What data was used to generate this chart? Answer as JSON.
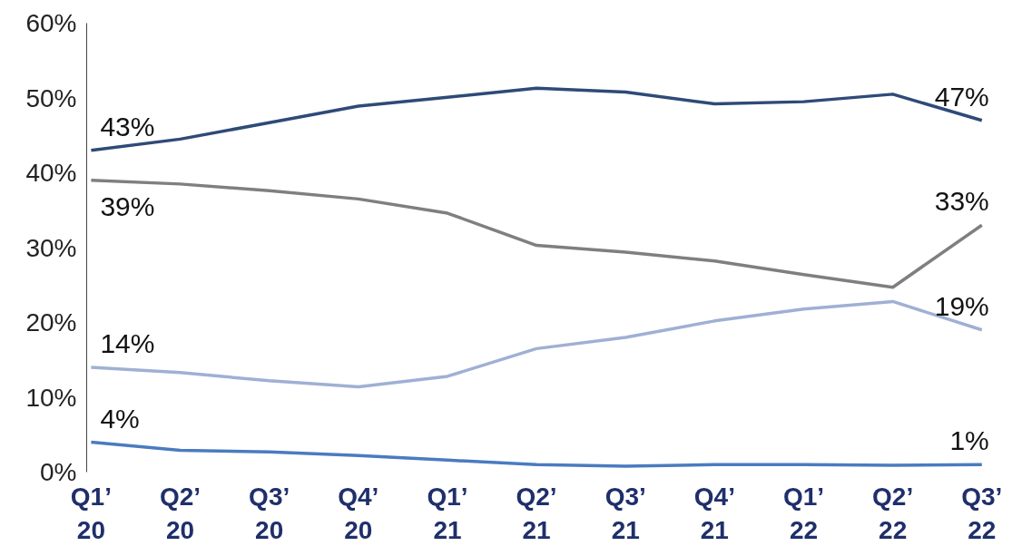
{
  "chart_data": {
    "type": "line",
    "categories": [
      "Q1’\n20",
      "Q2’\n20",
      "Q3’\n20",
      "Q4’\n20",
      "Q1’\n21",
      "Q2’\n21",
      "Q3’\n21",
      "Q4’\n21",
      "Q1’\n22",
      "Q2’\n22",
      "Q3’\n22"
    ],
    "series": [
      {
        "color": "#2f4a78",
        "values": [
          43,
          44.5,
          46.7,
          48.9,
          50.1,
          51.3,
          50.8,
          49.2,
          49.5,
          50.5,
          47
        ],
        "value_labels": [
          "43%",
          null,
          null,
          null,
          null,
          null,
          null,
          null,
          null,
          null,
          "47%"
        ]
      },
      {
        "color": "#7f7f7f",
        "values": [
          39,
          38.5,
          37.6,
          36.5,
          34.6,
          30.3,
          29.4,
          28.2,
          26.4,
          24.7,
          33
        ],
        "value_labels": [
          "39%",
          null,
          null,
          null,
          null,
          null,
          null,
          null,
          null,
          null,
          "33%"
        ]
      },
      {
        "color": "#9fb0d4",
        "values": [
          14,
          13.3,
          12.2,
          11.4,
          12.8,
          16.5,
          18,
          20.2,
          21.8,
          22.8,
          19
        ],
        "value_labels": [
          "14%",
          null,
          null,
          null,
          null,
          null,
          null,
          null,
          null,
          null,
          "19%"
        ]
      },
      {
        "color": "#4a7bc0",
        "values": [
          4,
          2.9,
          2.7,
          2.2,
          1.6,
          1.0,
          0.8,
          1.0,
          1.0,
          0.9,
          1
        ],
        "value_labels": [
          "4%",
          null,
          null,
          null,
          null,
          null,
          null,
          null,
          null,
          null,
          "1%"
        ]
      }
    ],
    "ylim": [
      0,
      60
    ],
    "yticks": [
      {
        "value": 0,
        "label": "0%"
      },
      {
        "value": 10,
        "label": "10%"
      },
      {
        "value": 20,
        "label": "20%"
      },
      {
        "value": 30,
        "label": "30%"
      },
      {
        "value": 40,
        "label": "40%"
      },
      {
        "value": 50,
        "label": "50%"
      },
      {
        "value": 60,
        "label": "60%"
      }
    ],
    "grid": false
  }
}
